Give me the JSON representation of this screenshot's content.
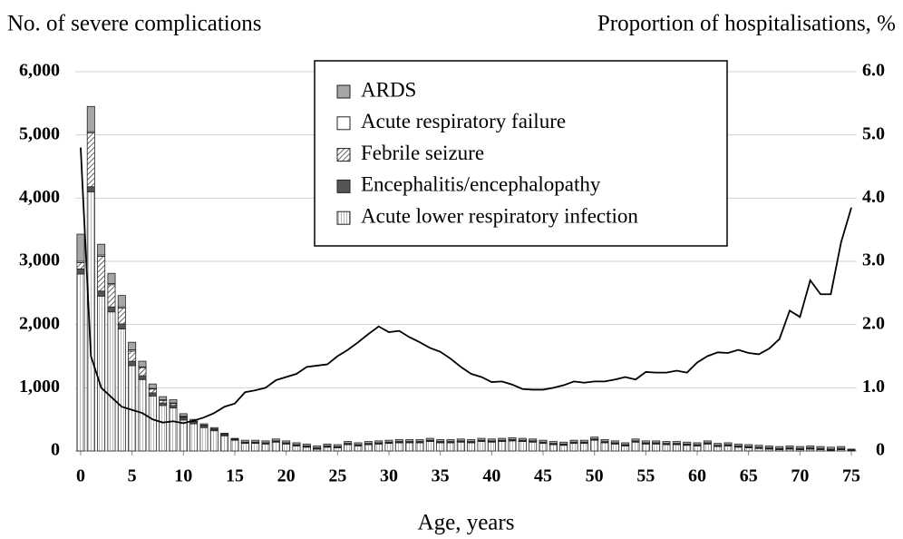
{
  "chart_data": {
    "type": "bar",
    "stacked": true,
    "y_label": "No. of severe complications",
    "y2_label": "Proportion of hospitalisations, %",
    "x_label": "Age, years",
    "x": [
      0,
      1,
      2,
      3,
      4,
      5,
      6,
      7,
      8,
      9,
      10,
      11,
      12,
      13,
      14,
      15,
      16,
      17,
      18,
      19,
      20,
      21,
      22,
      23,
      24,
      25,
      26,
      27,
      28,
      29,
      30,
      31,
      32,
      33,
      34,
      35,
      36,
      37,
      38,
      39,
      40,
      41,
      42,
      43,
      44,
      45,
      46,
      47,
      48,
      49,
      50,
      51,
      52,
      53,
      54,
      55,
      56,
      57,
      58,
      59,
      60,
      61,
      62,
      63,
      64,
      65,
      66,
      67,
      68,
      69,
      70,
      71,
      72,
      73,
      74,
      75
    ],
    "xlim": [
      -0.5,
      75.5
    ],
    "xticks": [
      0,
      5,
      10,
      15,
      20,
      25,
      30,
      35,
      40,
      45,
      50,
      55,
      60,
      65,
      70,
      75
    ],
    "ylim": [
      0,
      6000
    ],
    "yticks": [
      0,
      {
        "value": 1000,
        "label": "1,000"
      },
      {
        "value": 2000,
        "label": "2,000"
      },
      {
        "value": 3000,
        "label": "3,000"
      },
      {
        "value": 4000,
        "label": "4,000"
      },
      {
        "value": 5000,
        "label": "5,000"
      },
      {
        "value": 6000,
        "label": "6,000"
      }
    ],
    "y2lim": [
      0,
      6
    ],
    "y2ticks": [
      0,
      {
        "value": 1,
        "label": "1.0"
      },
      {
        "value": 2,
        "label": "2.0"
      },
      {
        "value": 3,
        "label": "3.0"
      },
      {
        "value": 4,
        "label": "4.0"
      },
      {
        "value": 5,
        "label": "5.0"
      },
      {
        "value": 6,
        "label": "6.0"
      }
    ],
    "grid": true,
    "series": [
      {
        "name": "ARDS",
        "color": "#a6a6a6",
        "values": [
          430,
          400,
          170,
          160,
          180,
          120,
          90,
          70,
          50,
          50,
          40,
          30,
          20,
          20,
          10,
          10,
          30,
          30,
          30,
          30,
          30,
          30,
          30,
          30,
          30,
          30,
          30,
          30,
          30,
          30,
          30,
          30,
          30,
          30,
          30,
          30,
          30,
          30,
          30,
          30,
          30,
          30,
          30,
          30,
          30,
          30,
          30,
          30,
          30,
          30,
          30,
          30,
          30,
          30,
          30,
          30,
          30,
          30,
          30,
          30,
          30,
          30,
          30,
          30,
          30,
          30,
          30,
          30,
          30,
          30,
          30,
          30,
          30,
          30,
          30,
          10
        ]
      },
      {
        "name": "Acute respiratory failure",
        "color": "#ffffff",
        "values": [
          20,
          20,
          20,
          20,
          20,
          20,
          10,
          10,
          10,
          10,
          10,
          10,
          10,
          10,
          10,
          10,
          10,
          10,
          10,
          10,
          10,
          10,
          10,
          10,
          10,
          10,
          10,
          10,
          10,
          10,
          10,
          10,
          10,
          10,
          10,
          10,
          10,
          10,
          10,
          10,
          10,
          10,
          10,
          10,
          10,
          10,
          10,
          10,
          10,
          10,
          10,
          10,
          10,
          10,
          10,
          10,
          10,
          10,
          10,
          10,
          10,
          10,
          10,
          10,
          10,
          10,
          10,
          10,
          10,
          10,
          10,
          10,
          10,
          10,
          10,
          5
        ]
      },
      {
        "name": "Febrile seizure",
        "color": "#ffffff",
        "pattern": "hatch",
        "values": [
          100,
          850,
          550,
          350,
          250,
          160,
          130,
          60,
          40,
          30,
          10,
          0,
          0,
          0,
          0,
          0,
          0,
          0,
          0,
          0,
          0,
          0,
          0,
          0,
          0,
          0,
          0,
          0,
          0,
          0,
          0,
          0,
          0,
          0,
          0,
          0,
          0,
          0,
          0,
          0,
          0,
          0,
          0,
          0,
          0,
          0,
          0,
          0,
          0,
          0,
          0,
          0,
          0,
          0,
          0,
          0,
          0,
          0,
          0,
          0,
          0,
          0,
          0,
          0,
          0,
          0,
          0,
          0,
          0,
          0,
          0,
          0,
          0,
          0,
          0,
          0
        ]
      },
      {
        "name": "Encephalitis/encephalopathy",
        "color": "#555555",
        "values": [
          80,
          80,
          80,
          80,
          80,
          70,
          60,
          50,
          40,
          40,
          40,
          30,
          30,
          20,
          20,
          10,
          10,
          10,
          10,
          10,
          10,
          10,
          10,
          10,
          10,
          10,
          10,
          10,
          10,
          10,
          10,
          10,
          10,
          10,
          10,
          10,
          10,
          10,
          10,
          10,
          10,
          10,
          10,
          10,
          10,
          10,
          10,
          10,
          10,
          10,
          10,
          10,
          10,
          10,
          10,
          10,
          10,
          10,
          10,
          10,
          10,
          10,
          10,
          10,
          10,
          10,
          10,
          10,
          10,
          10,
          10,
          10,
          10,
          10,
          10,
          5
        ]
      },
      {
        "name": "Acute lower respiratory infection",
        "color": "#ffffff",
        "pattern": "vlines",
        "values": [
          2800,
          4100,
          2450,
          2200,
          1930,
          1350,
          1130,
          870,
          720,
          680,
          490,
          430,
          370,
          320,
          240,
          170,
          120,
          120,
          110,
          140,
          110,
          80,
          60,
          30,
          60,
          50,
          100,
          80,
          100,
          110,
          120,
          130,
          130,
          130,
          150,
          130,
          130,
          140,
          130,
          150,
          140,
          150,
          160,
          150,
          140,
          120,
          100,
          90,
          120,
          120,
          170,
          130,
          110,
          80,
          140,
          110,
          110,
          100,
          100,
          90,
          80,
          110,
          70,
          80,
          60,
          50,
          40,
          30,
          20,
          30,
          20,
          30,
          20,
          10,
          20,
          10
        ]
      },
      {
        "type": "line",
        "axis": "y2",
        "color": "#000000",
        "values": [
          4.8,
          1.5,
          1.0,
          0.85,
          0.7,
          0.65,
          0.6,
          0.5,
          0.45,
          0.47,
          0.44,
          0.48,
          0.53,
          0.6,
          0.7,
          0.75,
          0.93,
          0.96,
          1.0,
          1.12,
          1.17,
          1.22,
          1.33,
          1.35,
          1.37,
          1.5,
          1.6,
          1.72,
          1.85,
          1.97,
          1.88,
          1.9,
          1.8,
          1.72,
          1.63,
          1.57,
          1.46,
          1.33,
          1.22,
          1.17,
          1.09,
          1.1,
          1.05,
          0.98,
          0.97,
          0.97,
          1.0,
          1.04,
          1.1,
          1.08,
          1.1,
          1.1,
          1.13,
          1.17,
          1.13,
          1.25,
          1.24,
          1.24,
          1.27,
          1.24,
          1.4,
          1.5,
          1.56,
          1.55,
          1.6,
          1.55,
          1.53,
          1.62,
          1.77,
          2.22,
          2.12,
          2.7,
          2.48,
          2.48,
          3.3,
          3.85
        ]
      }
    ]
  }
}
